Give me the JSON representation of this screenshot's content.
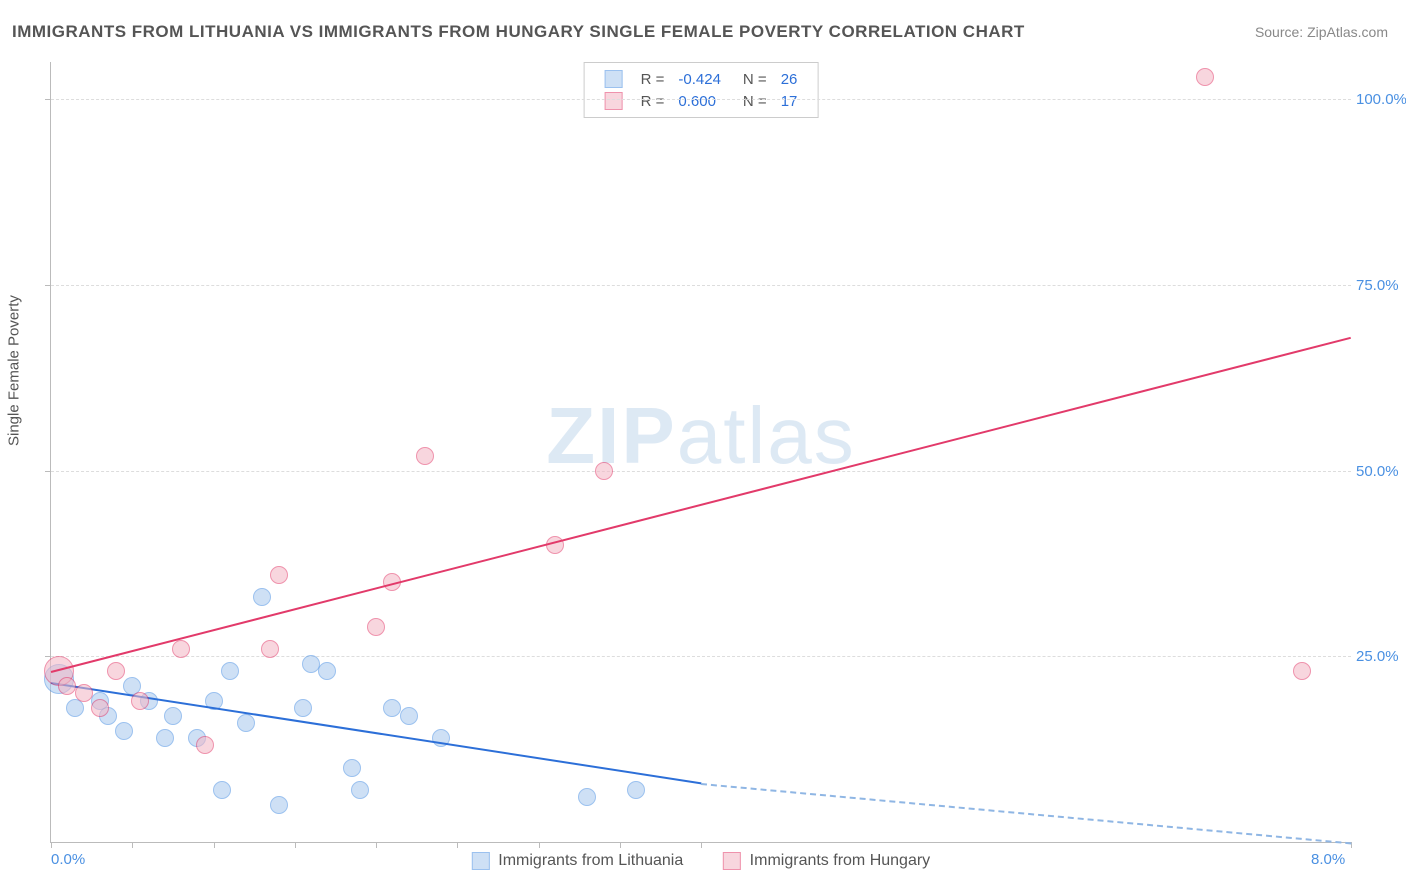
{
  "title": "IMMIGRANTS FROM LITHUANIA VS IMMIGRANTS FROM HUNGARY SINGLE FEMALE POVERTY CORRELATION CHART",
  "source_label": "Source: ZipAtlas.com",
  "watermark": {
    "bold": "ZIP",
    "rest": "atlas"
  },
  "chart": {
    "type": "scatter",
    "background_color": "#ffffff",
    "grid_color": "#dddddd",
    "axis_color": "#bbbbbb",
    "tick_label_color": "#4a90e2",
    "y_axis_title": "Single Female Poverty",
    "xlim": [
      0,
      8
    ],
    "ylim": [
      0,
      105
    ],
    "xticks": [
      {
        "pos": 0.0,
        "label": "0.0%"
      },
      {
        "pos": 0.5,
        "label": ""
      },
      {
        "pos": 1.0,
        "label": ""
      },
      {
        "pos": 1.5,
        "label": ""
      },
      {
        "pos": 2.0,
        "label": ""
      },
      {
        "pos": 2.5,
        "label": ""
      },
      {
        "pos": 3.0,
        "label": ""
      },
      {
        "pos": 3.5,
        "label": ""
      },
      {
        "pos": 4.0,
        "label": ""
      },
      {
        "pos": 8.0,
        "label": "8.0%"
      }
    ],
    "yticks": [
      {
        "pos": 25,
        "label": "25.0%"
      },
      {
        "pos": 50,
        "label": "50.0%"
      },
      {
        "pos": 75,
        "label": "75.0%"
      },
      {
        "pos": 100,
        "label": "100.0%"
      }
    ],
    "series": [
      {
        "name": "Immigrants from Lithuania",
        "fill_color": "#a7c7ee",
        "stroke_color": "#4a90e2",
        "fill_opacity": 0.55,
        "marker_radius": 8,
        "points": [
          {
            "x": 0.05,
            "y": 22,
            "r": 14
          },
          {
            "x": 0.15,
            "y": 18
          },
          {
            "x": 0.3,
            "y": 19
          },
          {
            "x": 0.35,
            "y": 17
          },
          {
            "x": 0.45,
            "y": 15
          },
          {
            "x": 0.5,
            "y": 21
          },
          {
            "x": 0.6,
            "y": 19
          },
          {
            "x": 0.7,
            "y": 14
          },
          {
            "x": 0.75,
            "y": 17
          },
          {
            "x": 0.9,
            "y": 14
          },
          {
            "x": 1.0,
            "y": 19
          },
          {
            "x": 1.05,
            "y": 7
          },
          {
            "x": 1.1,
            "y": 23
          },
          {
            "x": 1.2,
            "y": 16
          },
          {
            "x": 1.3,
            "y": 33
          },
          {
            "x": 1.4,
            "y": 5
          },
          {
            "x": 1.55,
            "y": 18
          },
          {
            "x": 1.6,
            "y": 24
          },
          {
            "x": 1.7,
            "y": 23
          },
          {
            "x": 1.85,
            "y": 10
          },
          {
            "x": 1.9,
            "y": 7
          },
          {
            "x": 2.1,
            "y": 18
          },
          {
            "x": 2.2,
            "y": 17
          },
          {
            "x": 2.4,
            "y": 14
          },
          {
            "x": 3.3,
            "y": 6
          },
          {
            "x": 3.6,
            "y": 7
          }
        ],
        "trend": {
          "x1": 0.0,
          "y1": 21.5,
          "x2": 4.0,
          "y2": 8.0,
          "solid_color": "#2c6fd8",
          "dash_to_x": 8.0,
          "dash_to_y": 0.0,
          "dash_color": "#8fb6e4"
        },
        "correlation": {
          "R": "-0.424",
          "N": "26"
        }
      },
      {
        "name": "Immigrants from Hungary",
        "fill_color": "#f4b6c4",
        "stroke_color": "#e23a6a",
        "fill_opacity": 0.55,
        "marker_radius": 8,
        "points": [
          {
            "x": 0.05,
            "y": 23,
            "r": 14
          },
          {
            "x": 0.2,
            "y": 20
          },
          {
            "x": 0.3,
            "y": 18
          },
          {
            "x": 0.4,
            "y": 23
          },
          {
            "x": 0.55,
            "y": 19
          },
          {
            "x": 0.8,
            "y": 26
          },
          {
            "x": 0.95,
            "y": 13
          },
          {
            "x": 1.35,
            "y": 26
          },
          {
            "x": 1.4,
            "y": 36
          },
          {
            "x": 2.0,
            "y": 29
          },
          {
            "x": 2.1,
            "y": 35
          },
          {
            "x": 2.3,
            "y": 52
          },
          {
            "x": 3.1,
            "y": 40
          },
          {
            "x": 3.4,
            "y": 50
          },
          {
            "x": 7.1,
            "y": 103
          },
          {
            "x": 7.7,
            "y": 23
          },
          {
            "x": 0.1,
            "y": 21
          }
        ],
        "trend": {
          "x1": 0.0,
          "y1": 23.0,
          "x2": 8.0,
          "y2": 68.0,
          "solid_color": "#e23a6a"
        },
        "correlation": {
          "R": "0.600",
          "N": "17"
        }
      }
    ],
    "legend_top": {
      "R_label": "R =",
      "N_label": "N =",
      "value_color": "#2c6fd8"
    },
    "legend_bottom_gap": 40
  }
}
